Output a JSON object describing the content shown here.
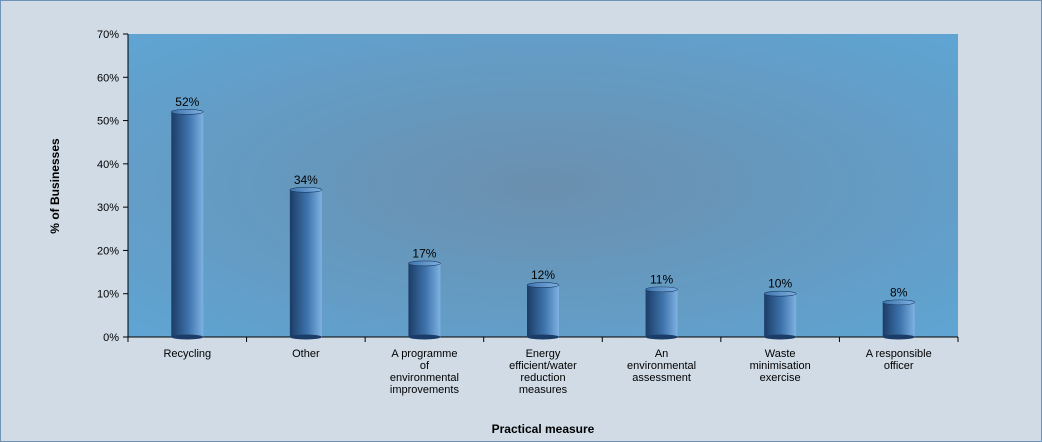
{
  "chart_data": {
    "type": "bar",
    "xlabel": "Practical measure",
    "ylabel": "% of Businesses",
    "ylim": [
      0,
      70
    ],
    "yticks": [
      0,
      10,
      20,
      30,
      40,
      50,
      60,
      70
    ],
    "ytick_suffix": "%",
    "grid": false,
    "categories": [
      [
        "Recycling"
      ],
      [
        "Other"
      ],
      [
        "A programme",
        "of",
        "environmental",
        "improvements"
      ],
      [
        "Energy",
        "efficient/water",
        "reduction",
        "measures"
      ],
      [
        "An",
        "environmental",
        "assessment"
      ],
      [
        "Waste",
        "minimisation",
        "exercise"
      ],
      [
        "A responsible",
        "officer"
      ]
    ],
    "values": [
      52,
      34,
      17,
      12,
      11,
      10,
      8
    ],
    "data_labels": [
      "52%",
      "34%",
      "17%",
      "12%",
      "11%",
      "10%",
      "8%"
    ]
  },
  "colors": {
    "frame_background": "#d0dbe6",
    "plot_edge": "#5ea6d6",
    "plot_center": "#6b8fae",
    "bar_dark": "#1b3c66",
    "bar_mid": "#3f74ad",
    "bar_light": "#7fb2e2"
  }
}
